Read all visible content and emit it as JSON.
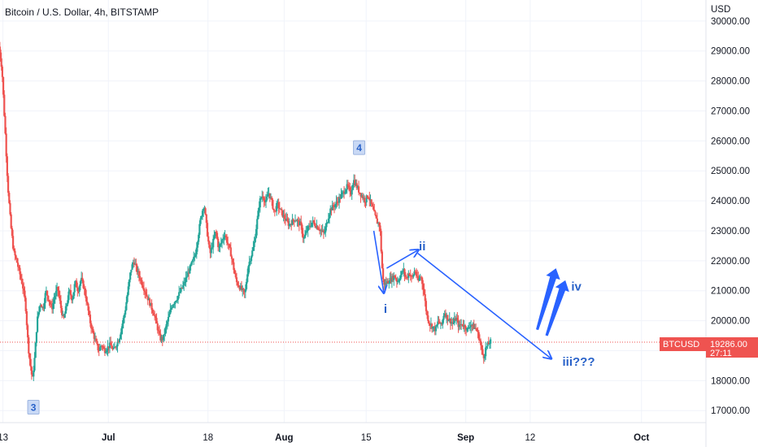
{
  "header": {
    "title": "Bitcoin / U.S. Dollar, 4h, BITSTAMP",
    "currency": "USD"
  },
  "price_tag": {
    "symbol": "BTCUSD",
    "price": "19286.00",
    "countdown": "27:11",
    "color": "#ef5350"
  },
  "chart_data": {
    "type": "candlestick",
    "title": "Bitcoin / U.S. Dollar, 4h, BITSTAMP",
    "ylabel": "USD",
    "ylim": [
      16600,
      30700
    ],
    "y_ticks": [
      17000,
      18000,
      19000,
      20000,
      21000,
      22000,
      23000,
      24000,
      25000,
      26000,
      27000,
      28000,
      29000,
      30000
    ],
    "y_tick_labels": [
      "17000.00",
      "18000.00",
      "19000.00",
      "20000.00",
      "21000.00",
      "22000.00",
      "23000.00",
      "24000.00",
      "25000.00",
      "26000.00",
      "27000.00",
      "28000.00",
      "29000.00",
      "30000.00"
    ],
    "x_ticks": [
      {
        "day": 13,
        "label": "13",
        "bold": false
      },
      {
        "day": 31,
        "label": "Jul",
        "bold": true
      },
      {
        "day": 48,
        "label": "18",
        "bold": false
      },
      {
        "day": 61,
        "label": "Aug",
        "bold": true
      },
      {
        "day": 75,
        "label": "15",
        "bold": false
      },
      {
        "day": 92,
        "label": "Sep",
        "bold": true
      },
      {
        "day": 103,
        "label": "12",
        "bold": false
      },
      {
        "day": 122,
        "label": "Oct",
        "bold": true
      }
    ],
    "x_range": [
      12.5,
      133
    ],
    "last_price": 19286,
    "up_color": "#26a69a",
    "down_color": "#ef5350",
    "path_points": [
      [
        12.4,
        29300
      ],
      [
        13.0,
        28400
      ],
      [
        13.5,
        26500
      ],
      [
        14.0,
        24500
      ],
      [
        14.5,
        23200
      ],
      [
        15.0,
        22300
      ],
      [
        15.5,
        22000
      ],
      [
        16.0,
        21600
      ],
      [
        16.5,
        21200
      ],
      [
        17.0,
        20600
      ],
      [
        17.5,
        19100
      ],
      [
        18.2,
        18000
      ],
      [
        18.6,
        18800
      ],
      [
        19.0,
        20000
      ],
      [
        19.5,
        20600
      ],
      [
        20.0,
        20400
      ],
      [
        20.5,
        21000
      ],
      [
        21.0,
        20700
      ],
      [
        21.5,
        20400
      ],
      [
        22.0,
        20800
      ],
      [
        22.5,
        21100
      ],
      [
        23.0,
        20500
      ],
      [
        23.5,
        20000
      ],
      [
        24.0,
        20500
      ],
      [
        24.5,
        21000
      ],
      [
        25.0,
        20700
      ],
      [
        25.5,
        21300
      ],
      [
        26.0,
        21000
      ],
      [
        26.5,
        21400
      ],
      [
        27.0,
        21100
      ],
      [
        27.5,
        20600
      ],
      [
        28.0,
        20000
      ],
      [
        28.5,
        19600
      ],
      [
        29.0,
        19300
      ],
      [
        29.5,
        19000
      ],
      [
        30.0,
        19200
      ],
      [
        30.5,
        19000
      ],
      [
        31.0,
        19100
      ],
      [
        31.5,
        19200
      ],
      [
        32.0,
        19000
      ],
      [
        33.0,
        19400
      ],
      [
        34.0,
        20300
      ],
      [
        35.0,
        21700
      ],
      [
        35.5,
        22000
      ],
      [
        36.0,
        21700
      ],
      [
        37.0,
        21200
      ],
      [
        38.0,
        20700
      ],
      [
        39.0,
        20200
      ],
      [
        40.0,
        19400
      ],
      [
        40.5,
        19400
      ],
      [
        41.0,
        19800
      ],
      [
        42.0,
        20500
      ],
      [
        43.0,
        20800
      ],
      [
        44.0,
        21200
      ],
      [
        45.0,
        21700
      ],
      [
        46.0,
        22200
      ],
      [
        47.0,
        23500
      ],
      [
        47.5,
        23900
      ],
      [
        48.0,
        23000
      ],
      [
        48.5,
        22200
      ],
      [
        49.0,
        22600
      ],
      [
        49.5,
        23000
      ],
      [
        50.0,
        22400
      ],
      [
        51.0,
        22900
      ],
      [
        52.0,
        22300
      ],
      [
        53.0,
        21300
      ],
      [
        54.0,
        21000
      ],
      [
        54.5,
        20900
      ],
      [
        55.0,
        21800
      ],
      [
        56.0,
        22500
      ],
      [
        57.0,
        24000
      ],
      [
        57.5,
        24200
      ],
      [
        58.0,
        23900
      ],
      [
        58.5,
        24300
      ],
      [
        59.0,
        24000
      ],
      [
        59.5,
        23600
      ],
      [
        60.0,
        23900
      ],
      [
        61.0,
        23500
      ],
      [
        62.0,
        23200
      ],
      [
        63.0,
        23400
      ],
      [
        64.0,
        23200
      ],
      [
        64.5,
        22700
      ],
      [
        65.0,
        23000
      ],
      [
        66.0,
        23300
      ],
      [
        67.0,
        23100
      ],
      [
        68.0,
        22900
      ],
      [
        68.5,
        23300
      ],
      [
        69.0,
        23700
      ],
      [
        70.0,
        23900
      ],
      [
        71.0,
        24200
      ],
      [
        72.0,
        24500
      ],
      [
        72.5,
        24200
      ],
      [
        73.0,
        24700
      ],
      [
        73.5,
        24500
      ],
      [
        74.0,
        24300
      ],
      [
        75.0,
        24000
      ],
      [
        75.5,
        24200
      ],
      [
        76.0,
        23900
      ],
      [
        76.5,
        23600
      ],
      [
        77.0,
        23300
      ],
      [
        77.5,
        23200
      ],
      [
        77.8,
        22100
      ],
      [
        78.0,
        21400
      ],
      [
        78.3,
        21200
      ],
      [
        78.8,
        21300
      ],
      [
        79.5,
        21400
      ],
      [
        80.0,
        21500
      ],
      [
        80.5,
        21300
      ],
      [
        81.0,
        21500
      ],
      [
        81.5,
        21700
      ],
      [
        82.0,
        21400
      ],
      [
        82.5,
        21600
      ],
      [
        83.0,
        21400
      ],
      [
        83.5,
        21700
      ],
      [
        84.0,
        21300
      ],
      [
        84.5,
        21500
      ],
      [
        85.0,
        21000
      ],
      [
        85.5,
        20200
      ],
      [
        86.0,
        19900
      ],
      [
        86.5,
        19800
      ],
      [
        87.0,
        19700
      ],
      [
        87.5,
        20000
      ],
      [
        88.0,
        19800
      ],
      [
        88.5,
        20300
      ],
      [
        89.0,
        20100
      ],
      [
        89.5,
        20000
      ],
      [
        90.0,
        19900
      ],
      [
        90.5,
        20100
      ],
      [
        91.0,
        19800
      ],
      [
        91.5,
        19900
      ],
      [
        92.0,
        19800
      ],
      [
        92.5,
        19700
      ],
      [
        93.0,
        19900
      ],
      [
        93.5,
        19800
      ],
      [
        94.0,
        19700
      ],
      [
        94.5,
        19400
      ],
      [
        94.8,
        19100
      ],
      [
        95.0,
        18900
      ],
      [
        95.3,
        18800
      ],
      [
        95.6,
        19100
      ],
      [
        96.0,
        19200
      ],
      [
        96.3,
        19300
      ]
    ]
  },
  "annotations": {
    "wave_boxes": [
      {
        "label": "3",
        "day": 18.2,
        "price": 17100
      },
      {
        "label": "4",
        "day": 73.8,
        "price": 25760
      }
    ],
    "wave_labels": [
      {
        "label": "i",
        "day": 78.0,
        "price": 20260
      },
      {
        "label": "ii",
        "day": 84.0,
        "price": 22350
      },
      {
        "label": "iii???",
        "day": 108.5,
        "price": 18500
      },
      {
        "label": "iv",
        "day": 110.0,
        "price": 21000
      }
    ],
    "arrow_color": "#2962ff"
  }
}
